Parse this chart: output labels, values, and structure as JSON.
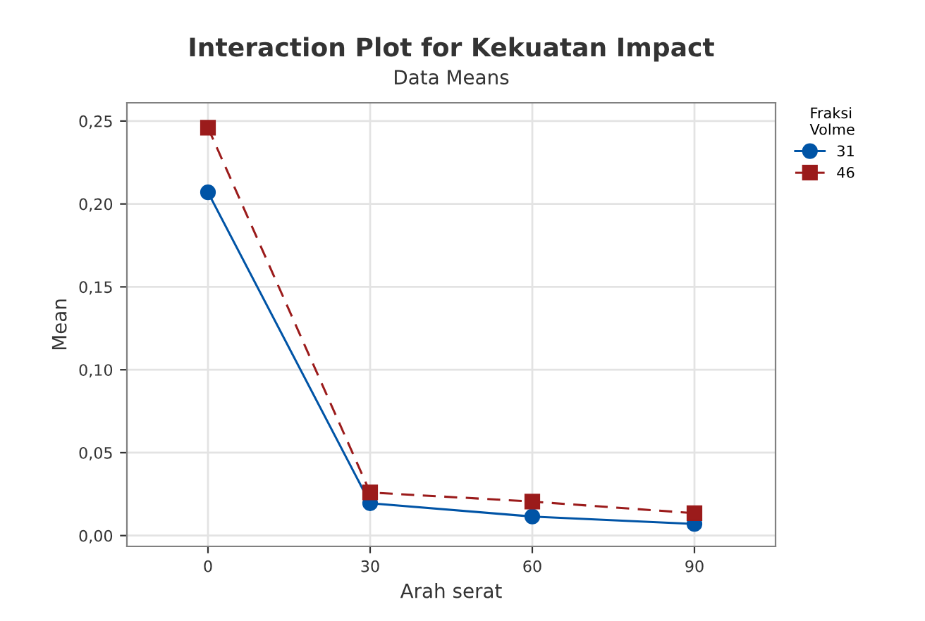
{
  "chart_data": {
    "type": "line",
    "title": "Interaction Plot for Kekuatan Impact",
    "subtitle": "Data Means",
    "xlabel": "Arah serat",
    "ylabel": "Mean",
    "legend_title": "Fraksi\nVolme",
    "x": [
      0,
      30,
      60,
      90
    ],
    "series": [
      {
        "name": "31",
        "color": "#0054a6",
        "values": [
          0.207,
          0.0195,
          0.0115,
          0.007
        ],
        "marker": "circle",
        "line_style": "solid"
      },
      {
        "name": "46",
        "color": "#9b1b1b",
        "values": [
          0.246,
          0.026,
          0.0205,
          0.0135
        ],
        "marker": "square",
        "line_style": "dashed"
      }
    ],
    "xlim": [
      -15,
      105
    ],
    "xticks": [
      0,
      30,
      60,
      90
    ],
    "ylim": [
      -0.0065,
      0.261
    ],
    "yticks": [
      {
        "value": 0,
        "label": "0,00"
      },
      {
        "value": 0.05,
        "label": "0,05"
      },
      {
        "value": 0.1,
        "label": "0,10"
      },
      {
        "value": 0.15,
        "label": "0,15"
      },
      {
        "value": 0.2,
        "label": "0,20"
      },
      {
        "value": 0.25,
        "label": "0,25"
      }
    ],
    "grid": true,
    "legend": "top right"
  }
}
